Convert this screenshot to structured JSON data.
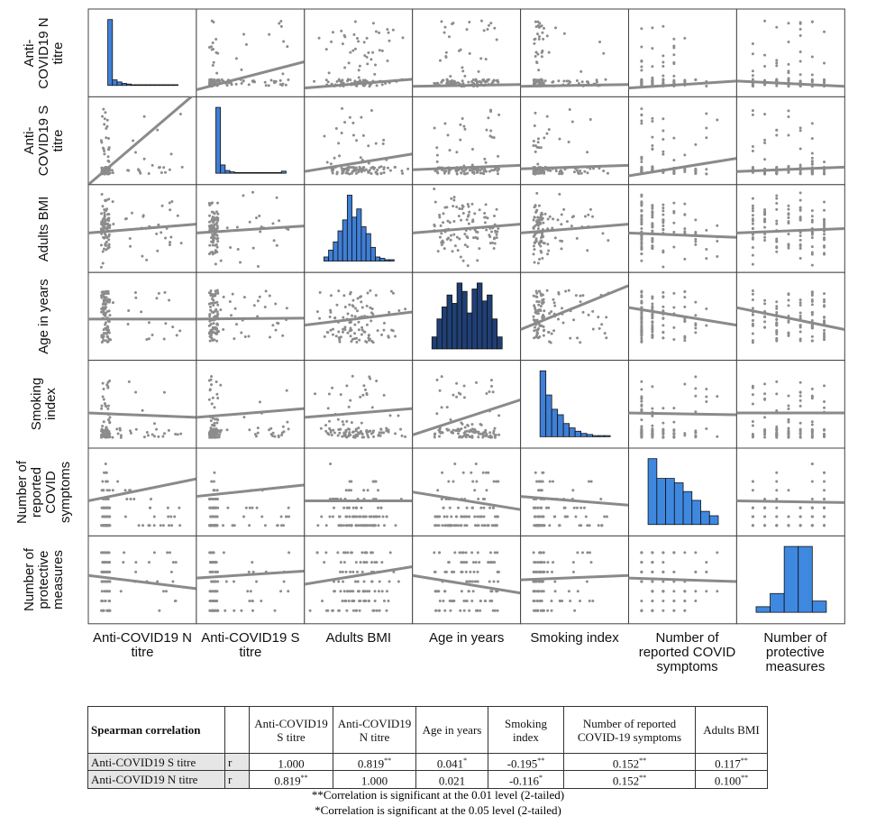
{
  "chart_data": {
    "type": "scatter",
    "variables": [
      "Anti-COVID19 N titre",
      "Anti-COVID19 S titre",
      "Adults BMI",
      "Age in years",
      "Smoking index",
      "Number of reported COVID symptoms",
      "Number of protective measures"
    ],
    "row_labels": [
      "Anti-COVID19 N titre",
      "Anti-COVID19 S titre",
      "Adults BMI",
      "Age in years",
      "Smoking index",
      "Number of reported COVID symptoms",
      "Number of protective measures"
    ],
    "col_labels": [
      "Anti-COVID19 N titre",
      "Anti-COVID19 S titre",
      "Adults BMI",
      "Age in years",
      "Smoking index",
      "Number of reported COVID symptoms",
      "Number of protective measures"
    ],
    "diagonal": "histogram",
    "off_diagonal": "scatter with linear fit",
    "histogram_counts": [
      [
        95,
        8,
        5,
        3,
        2,
        1,
        1,
        1,
        1,
        1,
        1,
        1,
        1,
        1,
        1
      ],
      [
        95,
        12,
        4,
        2,
        1,
        1,
        1,
        1,
        1,
        1,
        1,
        1,
        1,
        1,
        3
      ],
      [
        3,
        8,
        14,
        22,
        30,
        48,
        32,
        38,
        25,
        20,
        10,
        3,
        2,
        1,
        1
      ],
      [
        10,
        25,
        35,
        45,
        38,
        55,
        48,
        30,
        50,
        55,
        40,
        45,
        25,
        10
      ],
      [
        60,
        38,
        25,
        20,
        12,
        8,
        5,
        3,
        2,
        1,
        1,
        1
      ],
      [
        60,
        42,
        42,
        38,
        30,
        22,
        12,
        8
      ],
      [
        6,
        20,
        70,
        70,
        12
      ]
    ],
    "colors": {
      "histogram": "#3f7fd6",
      "points": "#8c8c8c",
      "fit_line": "#8a8a8a"
    }
  },
  "table": {
    "title": "Spearman correlation",
    "headers": [
      "",
      "",
      "Anti-COVID19 S titre",
      "Anti-COVID19 N titre",
      "Age in years",
      "Smoking index",
      "Number of reported COVID-19 symptoms",
      "Adults BMI"
    ],
    "rows": [
      {
        "label": "Anti-COVID19 S titre",
        "stat": "r",
        "values": [
          "1.000",
          "0.819",
          "0.041",
          "-0.195",
          "0.152",
          "0.117"
        ],
        "sig": [
          "",
          "**",
          "*",
          "**",
          "**",
          "**"
        ]
      },
      {
        "label": "Anti-COVID19 N titre",
        "stat": "r",
        "values": [
          "0.819",
          "1.000",
          "0.021",
          "-0.116",
          "0.152",
          "0.100"
        ],
        "sig": [
          "**",
          "",
          "",
          "*",
          "**",
          "**"
        ]
      }
    ],
    "footnotes": [
      "**Correlation is significant at the 0.01 level (2-tailed)",
      "*Correlation is significant at the 0.05 level (2-tailed)"
    ]
  }
}
